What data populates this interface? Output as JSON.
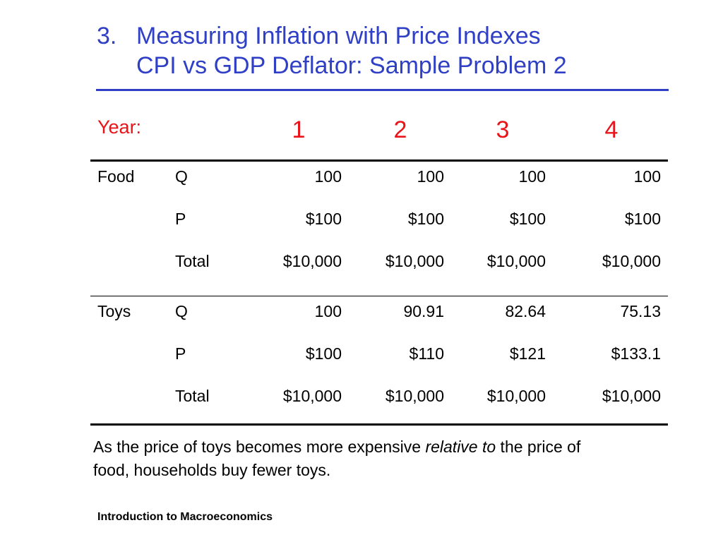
{
  "title": {
    "number": "3.",
    "line1": "Measuring Inflation with Price Indexes",
    "line2": "CPI vs GDP Deflator: Sample Problem 2"
  },
  "table": {
    "year_label": "Year:",
    "years": [
      "1",
      "2",
      "3",
      "4"
    ],
    "sections": [
      {
        "item": "Food",
        "rows": [
          {
            "label": "Q",
            "values": [
              "100",
              "100",
              "100",
              "100"
            ]
          },
          {
            "label": "P",
            "values": [
              "$100",
              "$100",
              "$100",
              "$100"
            ]
          },
          {
            "label": "Total",
            "values": [
              "$10,000",
              "$10,000",
              "$10,000",
              "$10,000"
            ]
          }
        ]
      },
      {
        "item": "Toys",
        "rows": [
          {
            "label": "Q",
            "values": [
              "100",
              "90.91",
              "82.64",
              "75.13"
            ]
          },
          {
            "label": "P",
            "values": [
              "$100",
              "$110",
              "$121",
              "$133.1"
            ]
          },
          {
            "label": "Total",
            "values": [
              "$10,000",
              "$10,000",
              "$10,000",
              "$10,000"
            ]
          }
        ]
      }
    ]
  },
  "note": {
    "part1": "As the price of toys becomes more expensive ",
    "italic": "relative to",
    "part2": " the price of food, households buy fewer toys."
  },
  "footer": "Introduction to Macroeconomics",
  "colors": {
    "title": "#2f3fc6",
    "year": "#e8141a"
  }
}
